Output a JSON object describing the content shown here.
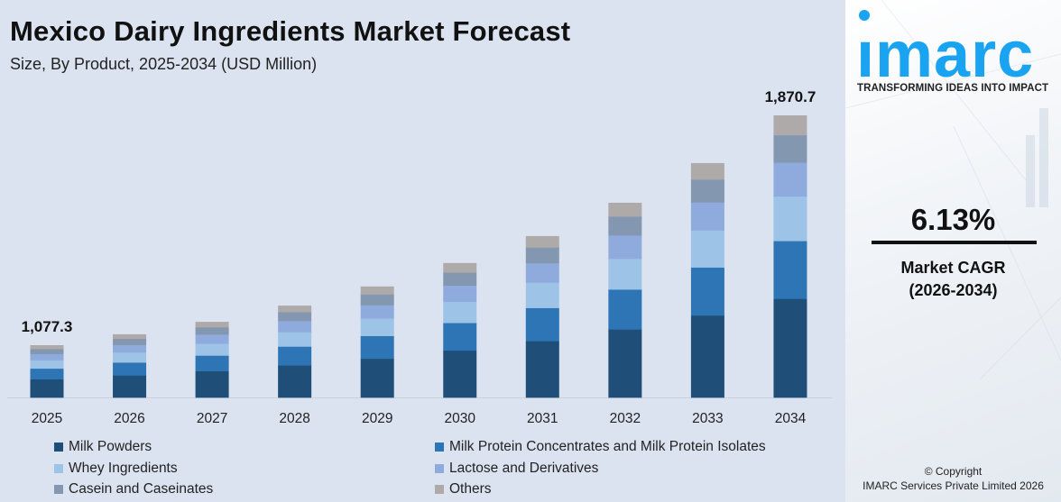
{
  "title": "Mexico Dairy Ingredients Market Forecast",
  "subtitle": "Size, By Product, 2025-2034 (USD Million)",
  "brand": {
    "logo_text": "imarc",
    "tagline": "TRANSFORMING IDEAS INTO IMPACT",
    "color": "#1aa3f0"
  },
  "cagr": {
    "value": "6.13%",
    "label": "Market CAGR",
    "period": "(2026-2034)"
  },
  "copyright": {
    "line1": "© Copyright",
    "line2": "IMARC Services Private Limited 2026"
  },
  "chart_data": {
    "type": "bar",
    "stacked": true,
    "title": "Mexico Dairy Ingredients Market Forecast",
    "subtitle": "Size, By Product, 2025-2034 (USD Million)",
    "categories": [
      "2025",
      "2026",
      "2027",
      "2028",
      "2029",
      "2030",
      "2031",
      "2032",
      "2033",
      "2034"
    ],
    "totals": [
      1077.3,
      1115,
      1158,
      1214,
      1280,
      1361,
      1454,
      1569,
      1706,
      1870.7
    ],
    "total_labels": {
      "2025": "1,077.3",
      "2034": "1,870.7"
    },
    "series": [
      {
        "name": "Milk Powders",
        "color": "#1f4e79",
        "values": [
          377.1,
          390.3,
          405.3,
          424.9,
          448.0,
          476.4,
          508.9,
          549.2,
          597.1,
          654.7
        ]
      },
      {
        "name": "Milk Protein Concentrates and Milk Protein Isolates",
        "color": "#2e75b6",
        "values": [
          220.8,
          228.6,
          237.4,
          248.9,
          262.4,
          279.0,
          298.1,
          321.6,
          349.7,
          383.5
        ]
      },
      {
        "name": "Whey Ingredients",
        "color": "#9dc3e6",
        "values": [
          170.2,
          176.2,
          183.0,
          191.8,
          202.2,
          215.0,
          229.7,
          247.9,
          269.5,
          295.6
        ]
      },
      {
        "name": "Lactose and Derivatives",
        "color": "#8faadc",
        "values": [
          129.3,
          133.8,
          139.0,
          145.7,
          153.6,
          163.3,
          174.5,
          188.3,
          204.7,
          224.5
        ]
      },
      {
        "name": "Casein and Caseinates",
        "color": "#8497b0",
        "values": [
          104.5,
          108.2,
          112.3,
          117.8,
          124.2,
          132.0,
          141.0,
          152.2,
          165.5,
          181.5
        ]
      },
      {
        "name": "Others",
        "color": "#aeaaaa",
        "values": [
          75.4,
          78.1,
          81.1,
          85.0,
          89.6,
          95.3,
          101.8,
          109.8,
          119.4,
          130.9
        ]
      }
    ],
    "legend_position": "bottom",
    "grid": false,
    "y_axis_visible": false
  }
}
